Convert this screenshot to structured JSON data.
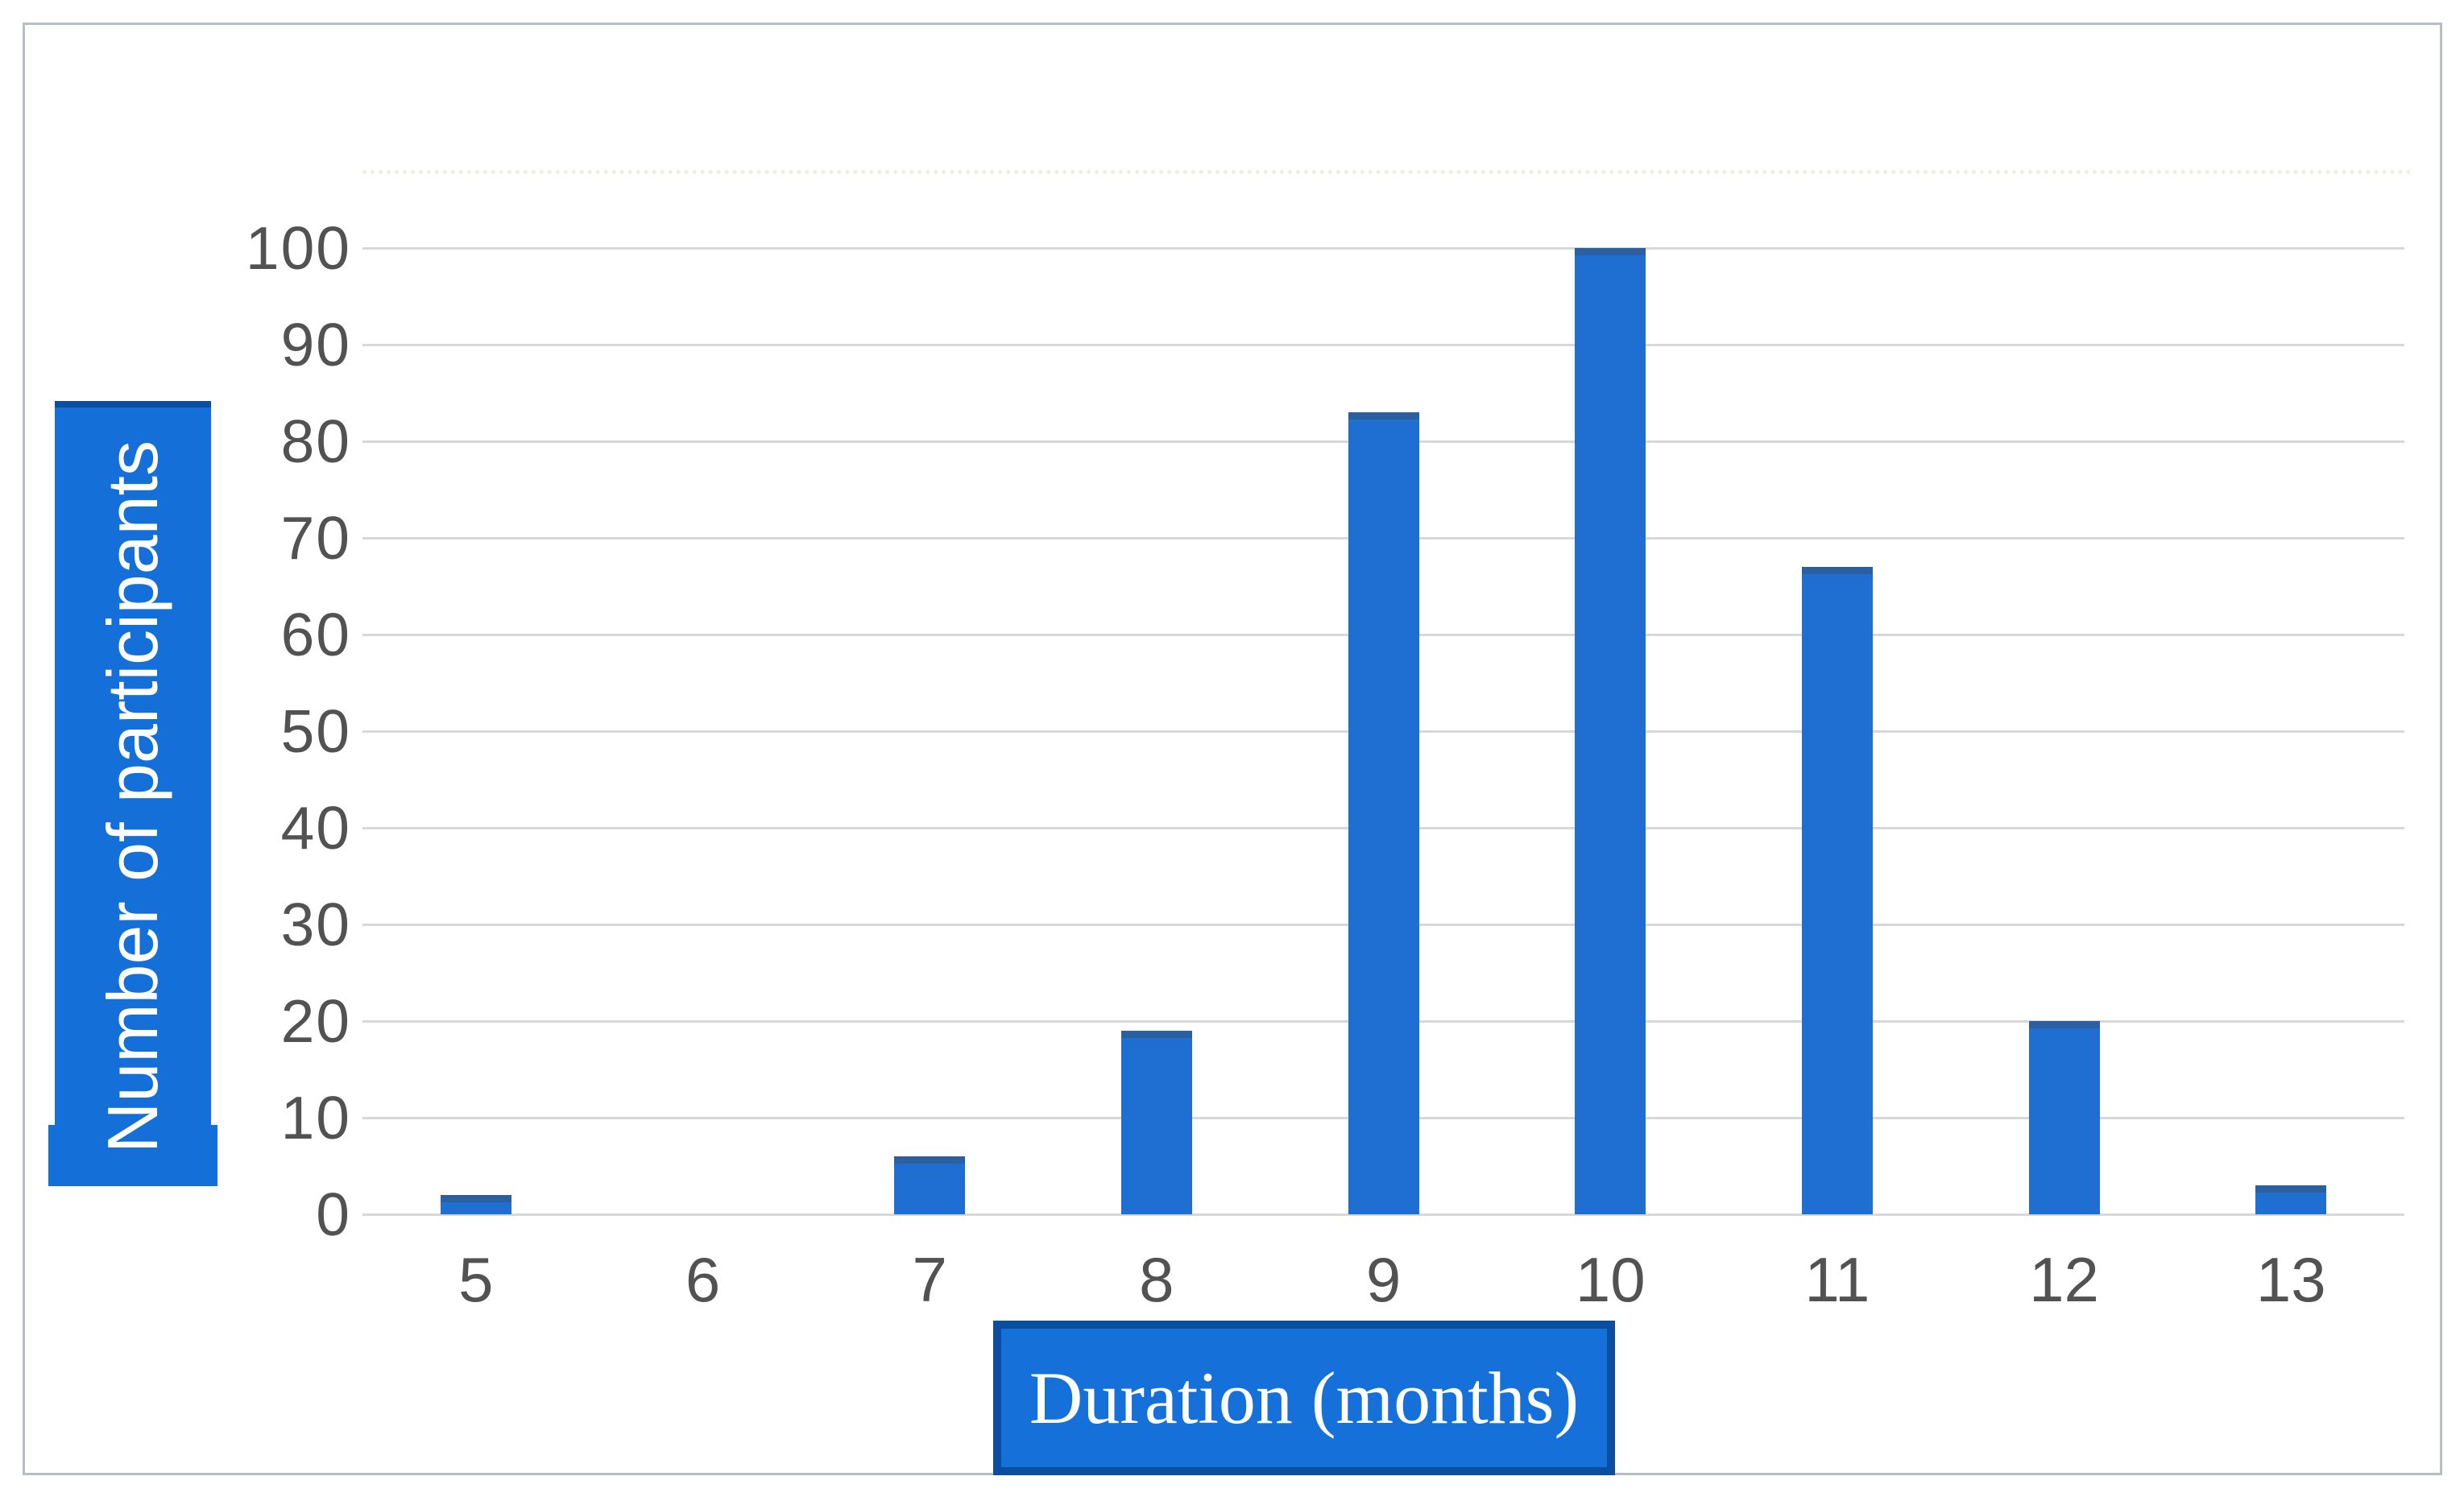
{
  "chart_data": {
    "type": "bar",
    "title": "",
    "categories": [
      "5",
      "6",
      "7",
      "8",
      "9",
      "10",
      "11",
      "12",
      "13"
    ],
    "values": [
      2,
      0,
      6,
      19,
      83,
      100,
      67,
      20,
      3
    ],
    "xlabel": "Duration (months)",
    "ylabel": "Number of participants",
    "yticks": [
      0,
      10,
      20,
      30,
      40,
      50,
      60,
      70,
      80,
      90,
      100
    ],
    "ylim": [
      0,
      100
    ],
    "grid": "horizontal",
    "legend": "none",
    "bar_color": "#1e6fd1",
    "bar_cap_color": "#2c5f9e",
    "gridline_color": "#d8d8d8",
    "tick_label_color": "#525252",
    "axis_label_box_fill": "#1571d9",
    "axis_label_box_border": "#0b4d9e",
    "axis_label_text_color": "#ffffff",
    "frame_border_color": "#b6bdc4"
  }
}
